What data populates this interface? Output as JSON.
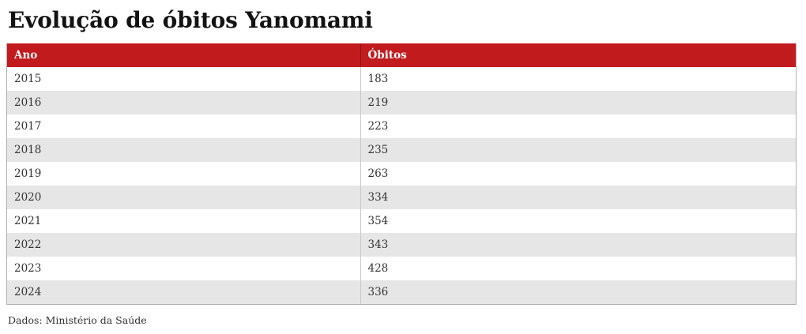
{
  "header": {
    "title": "Evolução de óbitos Yanomami"
  },
  "table": {
    "columns": {
      "ano": "Ano",
      "obitos": "Óbitos"
    },
    "rows": [
      {
        "ano": "2015",
        "obitos": "183"
      },
      {
        "ano": "2016",
        "obitos": "219"
      },
      {
        "ano": "2017",
        "obitos": "223"
      },
      {
        "ano": "2018",
        "obitos": "235"
      },
      {
        "ano": "2019",
        "obitos": "263"
      },
      {
        "ano": "2020",
        "obitos": "334"
      },
      {
        "ano": "2021",
        "obitos": "354"
      },
      {
        "ano": "2022",
        "obitos": "343"
      },
      {
        "ano": "2023",
        "obitos": "428"
      },
      {
        "ano": "2024",
        "obitos": "336"
      }
    ]
  },
  "footer": {
    "source": "Dados: Ministério da Saúde"
  },
  "colors": {
    "header_bg": "#c11b1e",
    "header_divider": "#8e1215",
    "header_text": "#ffffff",
    "alt_row_bg": "#e6e6e6",
    "row_bg": "#ffffff",
    "body_text": "#333333",
    "title_text": "#121212",
    "table_border": "#b0b0b0"
  },
  "chart_data": {
    "type": "table",
    "title": "Evolução de óbitos Yanomami",
    "columns": [
      "Ano",
      "Óbitos"
    ],
    "categories": [
      "2015",
      "2016",
      "2017",
      "2018",
      "2019",
      "2020",
      "2021",
      "2022",
      "2023",
      "2024"
    ],
    "values": [
      183,
      219,
      223,
      235,
      263,
      334,
      354,
      343,
      428,
      336
    ],
    "source": "Dados: Ministério da Saúde",
    "legend_position": "none",
    "grid": false
  }
}
